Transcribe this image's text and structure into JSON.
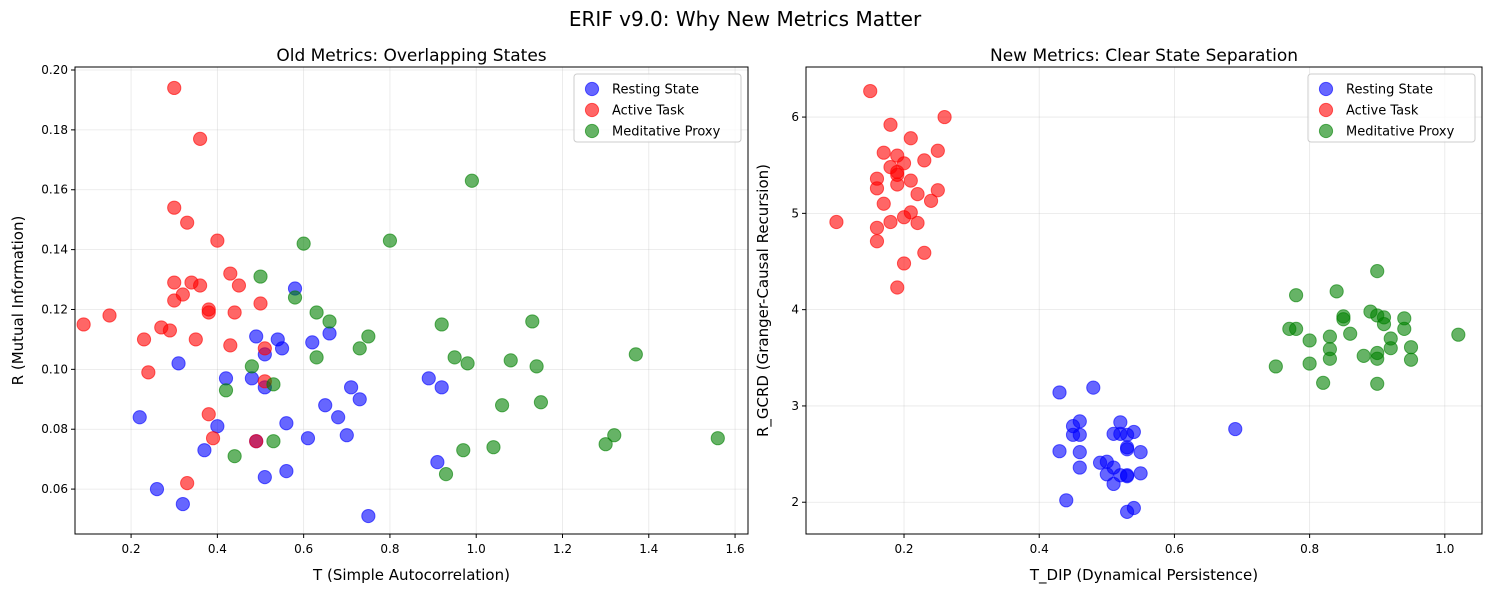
{
  "figure": {
    "title": "ERIF v9.0: Why New Metrics Matter"
  },
  "chart_data": [
    {
      "type": "scatter",
      "title": "Old Metrics: Overlapping States",
      "xlabel": "T (Simple Autocorrelation)",
      "ylabel": "R (Mutual Information)",
      "xlim": [
        0.07,
        1.63
      ],
      "ylim": [
        0.045,
        0.201
      ],
      "xticks": [
        0.2,
        0.4,
        0.6,
        0.8,
        1.0,
        1.2,
        1.4,
        1.6
      ],
      "xtick_labels": [
        "0.2",
        "0.4",
        "0.6",
        "0.8",
        "1.0",
        "1.2",
        "1.4",
        "1.6"
      ],
      "yticks": [
        0.06,
        0.08,
        0.1,
        0.12,
        0.14,
        0.16,
        0.18,
        0.2
      ],
      "ytick_labels": [
        "0.06",
        "0.08",
        "0.10",
        "0.12",
        "0.14",
        "0.16",
        "0.18",
        "0.20"
      ],
      "grid": true,
      "legend_position": "top-right",
      "series": [
        {
          "name": "Resting State",
          "color": "#0000ff",
          "points": [
            [
              0.22,
              0.084
            ],
            [
              0.26,
              0.06
            ],
            [
              0.31,
              0.102
            ],
            [
              0.32,
              0.055
            ],
            [
              0.37,
              0.073
            ],
            [
              0.4,
              0.081
            ],
            [
              0.42,
              0.097
            ],
            [
              0.48,
              0.097
            ],
            [
              0.49,
              0.076
            ],
            [
              0.49,
              0.111
            ],
            [
              0.51,
              0.094
            ],
            [
              0.51,
              0.105
            ],
            [
              0.51,
              0.064
            ],
            [
              0.54,
              0.11
            ],
            [
              0.55,
              0.107
            ],
            [
              0.56,
              0.082
            ],
            [
              0.56,
              0.066
            ],
            [
              0.58,
              0.127
            ],
            [
              0.61,
              0.077
            ],
            [
              0.62,
              0.109
            ],
            [
              0.65,
              0.088
            ],
            [
              0.66,
              0.112
            ],
            [
              0.68,
              0.084
            ],
            [
              0.7,
              0.078
            ],
            [
              0.71,
              0.094
            ],
            [
              0.73,
              0.09
            ],
            [
              0.75,
              0.051
            ],
            [
              0.89,
              0.097
            ],
            [
              0.91,
              0.069
            ],
            [
              0.92,
              0.094
            ]
          ]
        },
        {
          "name": "Active Task",
          "color": "#ff0000",
          "points": [
            [
              0.09,
              0.115
            ],
            [
              0.15,
              0.118
            ],
            [
              0.23,
              0.11
            ],
            [
              0.24,
              0.099
            ],
            [
              0.27,
              0.114
            ],
            [
              0.29,
              0.113
            ],
            [
              0.3,
              0.194
            ],
            [
              0.3,
              0.154
            ],
            [
              0.3,
              0.129
            ],
            [
              0.3,
              0.123
            ],
            [
              0.32,
              0.125
            ],
            [
              0.33,
              0.149
            ],
            [
              0.33,
              0.062
            ],
            [
              0.34,
              0.129
            ],
            [
              0.35,
              0.11
            ],
            [
              0.36,
              0.177
            ],
            [
              0.36,
              0.128
            ],
            [
              0.38,
              0.12
            ],
            [
              0.38,
              0.119
            ],
            [
              0.38,
              0.085
            ],
            [
              0.39,
              0.077
            ],
            [
              0.4,
              0.143
            ],
            [
              0.43,
              0.132
            ],
            [
              0.43,
              0.108
            ],
            [
              0.44,
              0.119
            ],
            [
              0.45,
              0.128
            ],
            [
              0.49,
              0.076
            ],
            [
              0.5,
              0.122
            ],
            [
              0.51,
              0.107
            ],
            [
              0.51,
              0.096
            ]
          ]
        },
        {
          "name": "Meditative Proxy",
          "color": "#008000",
          "points": [
            [
              0.42,
              0.093
            ],
            [
              0.44,
              0.071
            ],
            [
              0.48,
              0.101
            ],
            [
              0.5,
              0.131
            ],
            [
              0.53,
              0.095
            ],
            [
              0.53,
              0.076
            ],
            [
              0.58,
              0.124
            ],
            [
              0.6,
              0.142
            ],
            [
              0.63,
              0.119
            ],
            [
              0.63,
              0.104
            ],
            [
              0.66,
              0.116
            ],
            [
              0.73,
              0.107
            ],
            [
              0.75,
              0.111
            ],
            [
              0.8,
              0.143
            ],
            [
              0.92,
              0.115
            ],
            [
              0.93,
              0.065
            ],
            [
              0.95,
              0.104
            ],
            [
              0.97,
              0.073
            ],
            [
              0.98,
              0.102
            ],
            [
              0.99,
              0.163
            ],
            [
              1.04,
              0.074
            ],
            [
              1.06,
              0.088
            ],
            [
              1.08,
              0.103
            ],
            [
              1.13,
              0.116
            ],
            [
              1.14,
              0.101
            ],
            [
              1.15,
              0.089
            ],
            [
              1.3,
              0.075
            ],
            [
              1.32,
              0.078
            ],
            [
              1.37,
              0.105
            ],
            [
              1.56,
              0.077
            ]
          ]
        }
      ]
    },
    {
      "type": "scatter",
      "title": "New Metrics: Clear State Separation",
      "xlabel": "T_DIP (Dynamical Persistence)",
      "ylabel": "R_GCRD (Granger-Causal Recursion)",
      "xlim": [
        0.055,
        1.055
      ],
      "ylim": [
        1.67,
        6.52
      ],
      "xticks": [
        0.2,
        0.4,
        0.6,
        0.8,
        1.0
      ],
      "xtick_labels": [
        "0.2",
        "0.4",
        "0.6",
        "0.8",
        "1.0"
      ],
      "yticks": [
        2,
        3,
        4,
        5,
        6
      ],
      "ytick_labels": [
        "2",
        "3",
        "4",
        "5",
        "6"
      ],
      "grid": true,
      "legend_position": "top-right",
      "series": [
        {
          "name": "Resting State",
          "color": "#0000ff",
          "points": [
            [
              0.43,
              2.53
            ],
            [
              0.43,
              3.14
            ],
            [
              0.44,
              2.02
            ],
            [
              0.45,
              2.7
            ],
            [
              0.45,
              2.79
            ],
            [
              0.46,
              2.7
            ],
            [
              0.46,
              2.52
            ],
            [
              0.46,
              2.84
            ],
            [
              0.46,
              2.36
            ],
            [
              0.48,
              3.19
            ],
            [
              0.49,
              2.41
            ],
            [
              0.5,
              2.42
            ],
            [
              0.5,
              2.29
            ],
            [
              0.51,
              2.19
            ],
            [
              0.51,
              2.36
            ],
            [
              0.51,
              2.71
            ],
            [
              0.52,
              2.28
            ],
            [
              0.52,
              2.83
            ],
            [
              0.52,
              2.71
            ],
            [
              0.53,
              2.27
            ],
            [
              0.53,
              2.55
            ],
            [
              0.53,
              2.57
            ],
            [
              0.53,
              2.28
            ],
            [
              0.53,
              1.9
            ],
            [
              0.53,
              2.7
            ],
            [
              0.54,
              2.73
            ],
            [
              0.54,
              1.94
            ],
            [
              0.55,
              2.52
            ],
            [
              0.55,
              2.3
            ],
            [
              0.69,
              2.76
            ]
          ]
        },
        {
          "name": "Active Task",
          "color": "#ff0000",
          "points": [
            [
              0.1,
              4.91
            ],
            [
              0.15,
              6.27
            ],
            [
              0.16,
              5.36
            ],
            [
              0.16,
              5.26
            ],
            [
              0.16,
              4.85
            ],
            [
              0.16,
              4.71
            ],
            [
              0.17,
              5.63
            ],
            [
              0.17,
              5.1
            ],
            [
              0.18,
              5.92
            ],
            [
              0.18,
              5.48
            ],
            [
              0.18,
              4.91
            ],
            [
              0.19,
              5.6
            ],
            [
              0.19,
              5.3
            ],
            [
              0.19,
              4.23
            ],
            [
              0.19,
              5.43
            ],
            [
              0.19,
              5.4
            ],
            [
              0.2,
              4.96
            ],
            [
              0.2,
              4.48
            ],
            [
              0.2,
              5.52
            ],
            [
              0.21,
              5.78
            ],
            [
              0.21,
              5.34
            ],
            [
              0.21,
              5.01
            ],
            [
              0.22,
              4.9
            ],
            [
              0.22,
              5.2
            ],
            [
              0.23,
              5.55
            ],
            [
              0.23,
              4.59
            ],
            [
              0.24,
              5.13
            ],
            [
              0.25,
              5.65
            ],
            [
              0.25,
              5.24
            ],
            [
              0.26,
              6.0
            ]
          ]
        },
        {
          "name": "Meditative Proxy",
          "color": "#008000",
          "points": [
            [
              0.75,
              3.41
            ],
            [
              0.77,
              3.8
            ],
            [
              0.78,
              3.8
            ],
            [
              0.78,
              4.15
            ],
            [
              0.8,
              3.68
            ],
            [
              0.8,
              3.44
            ],
            [
              0.82,
              3.24
            ],
            [
              0.83,
              3.49
            ],
            [
              0.83,
              3.59
            ],
            [
              0.83,
              3.72
            ],
            [
              0.84,
              4.19
            ],
            [
              0.85,
              3.9
            ],
            [
              0.85,
              3.93
            ],
            [
              0.86,
              3.75
            ],
            [
              0.88,
              3.52
            ],
            [
              0.89,
              3.98
            ],
            [
              0.9,
              4.4
            ],
            [
              0.9,
              3.55
            ],
            [
              0.9,
              3.49
            ],
            [
              0.9,
              3.94
            ],
            [
              0.9,
              3.23
            ],
            [
              0.91,
              3.85
            ],
            [
              0.91,
              3.92
            ],
            [
              0.92,
              3.7
            ],
            [
              0.92,
              3.6
            ],
            [
              0.94,
              3.91
            ],
            [
              0.94,
              3.8
            ],
            [
              0.95,
              3.61
            ],
            [
              0.95,
              3.48
            ],
            [
              1.02,
              3.74
            ]
          ]
        }
      ]
    }
  ]
}
